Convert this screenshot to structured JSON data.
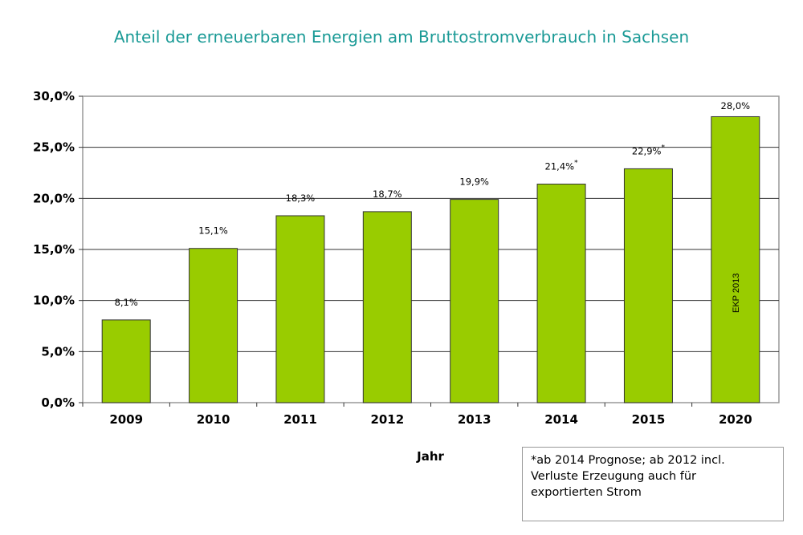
{
  "chart_data": {
    "type": "bar",
    "title": "Anteil der erneuerbaren Energien am Bruttostromverbrauch in Sachsen",
    "xlabel": "Jahr",
    "ylabel": "",
    "categories": [
      "2009",
      "2010",
      "2011",
      "2012",
      "2013",
      "2014",
      "2015",
      "2020"
    ],
    "values": [
      8.1,
      15.1,
      18.3,
      18.7,
      19.9,
      21.4,
      22.9,
      28.0
    ],
    "data_labels": [
      "8,1%",
      "15,1%",
      "18,3%",
      "18,7%",
      "19,9%",
      "21,4%",
      "22,9%",
      "28,0%"
    ],
    "label_markers": [
      "",
      "",
      "",
      "",
      "",
      "*",
      "*",
      ""
    ],
    "ylim": [
      0,
      30
    ],
    "yticks": [
      "0,0%",
      "5,0%",
      "10,0%",
      "15,0%",
      "20,0%",
      "25,0%",
      "30,0%"
    ],
    "grid": true,
    "bar_color": "#99cc00",
    "bar_annotation": {
      "category": "2020",
      "text": "EKP 2013"
    },
    "footnote": [
      "*ab 2014 Prognose;  ab 2012 incl.",
      "Verluste Erzeugung auch für",
      "exportierten Strom"
    ]
  }
}
